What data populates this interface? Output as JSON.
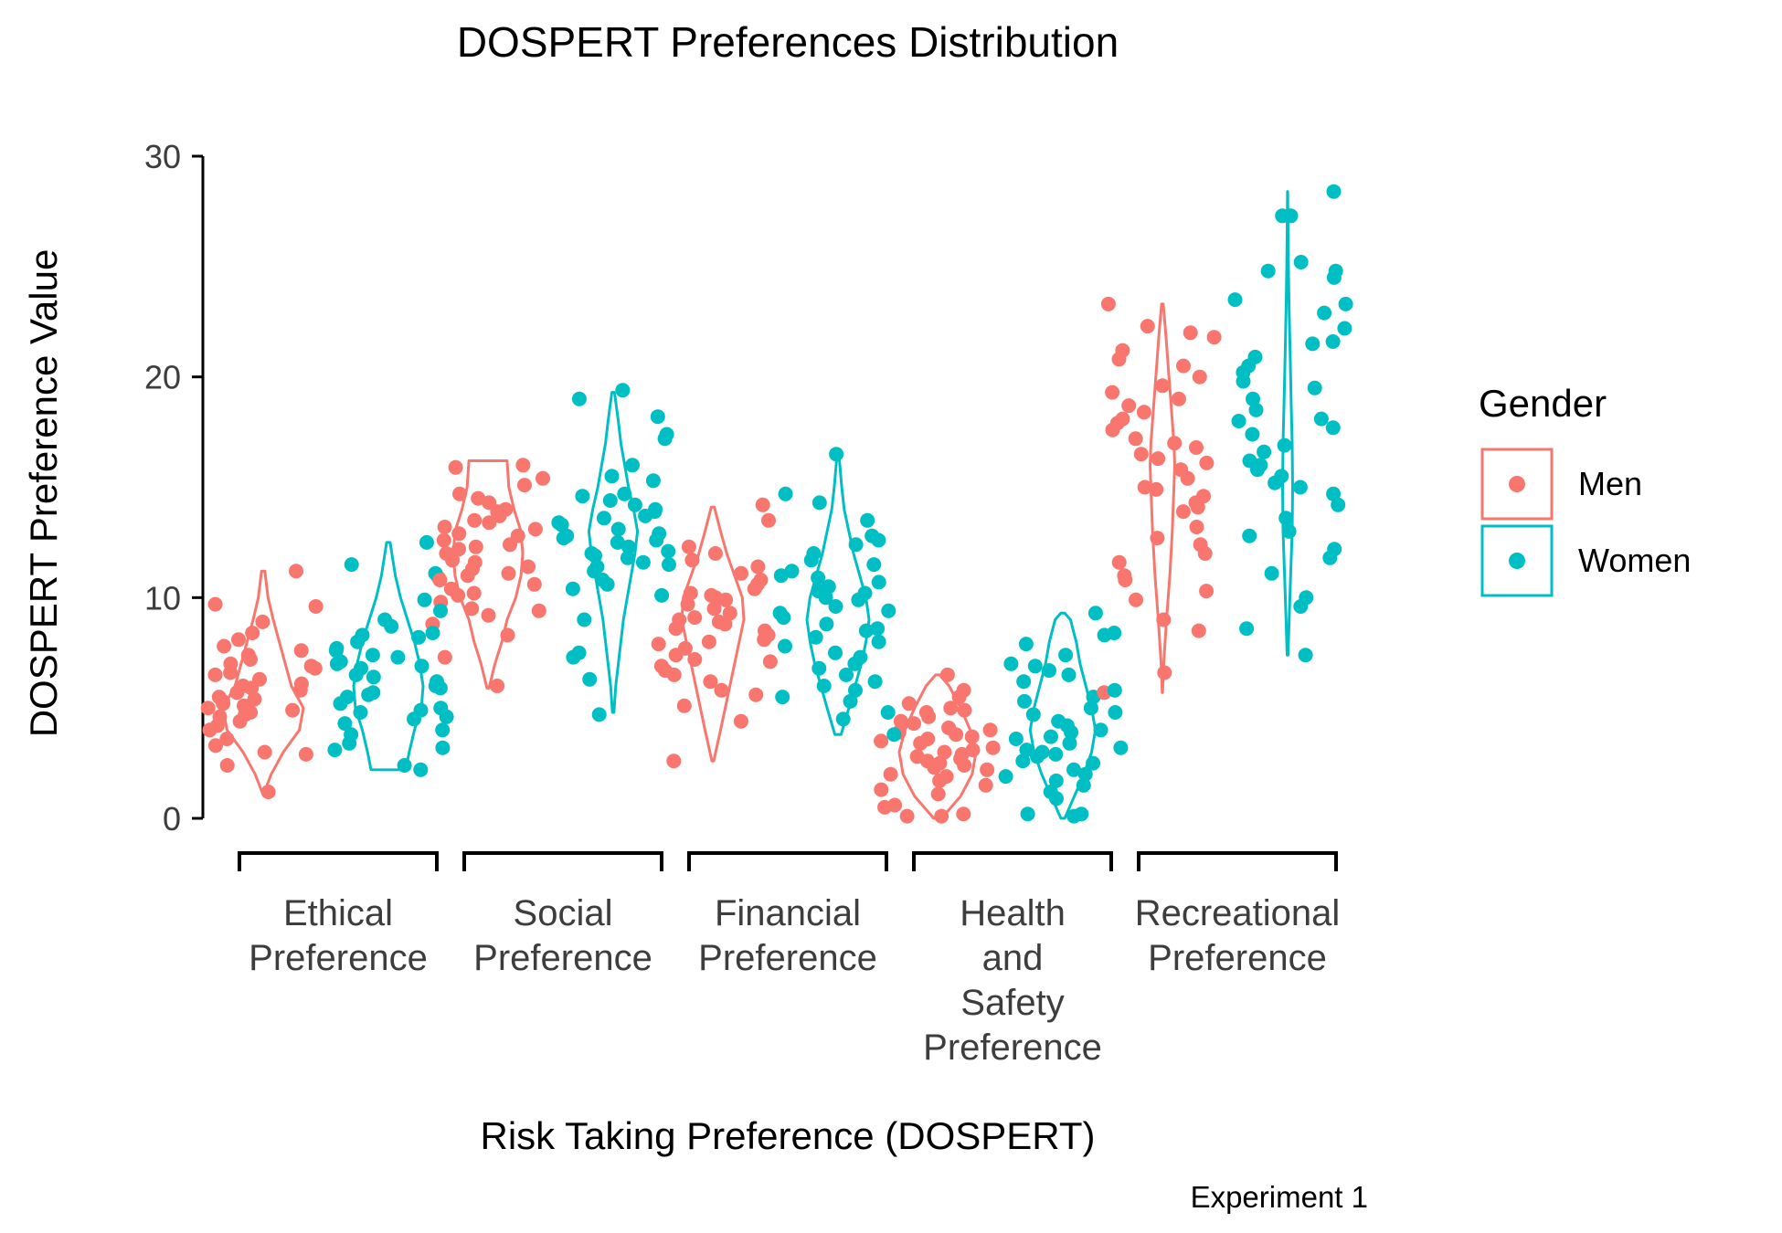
{
  "chart_data": {
    "type": "violin-jitter",
    "title": "DOSPERT Preferences Distribution",
    "xlabel": "Risk Taking Preference (DOSPERT)",
    "ylabel": "DOSPERT Preference Value",
    "caption": "Experiment 1",
    "ylim": [
      0,
      30
    ],
    "yticks": [
      0,
      10,
      20,
      30
    ],
    "grid": false,
    "legend": {
      "title": "Gender",
      "position": "right",
      "entries": [
        {
          "name": "Men",
          "color": "#f8766d"
        },
        {
          "name": "Women",
          "color": "#00bfc4"
        }
      ]
    },
    "categories": [
      {
        "lines": [
          "Ethical",
          "Preference"
        ]
      },
      {
        "lines": [
          "Social",
          "Preference"
        ]
      },
      {
        "lines": [
          "Financial",
          "Preference"
        ]
      },
      {
        "lines": [
          "Health",
          "and",
          "Safety",
          "Preference"
        ]
      },
      {
        "lines": [
          "Recreational",
          "Preference"
        ]
      }
    ],
    "series": [
      {
        "name": "Men",
        "color": "#f8766d",
        "violins": [
          {
            "min": 1.2,
            "max": 11.2,
            "profile": [
              [
                1.2,
                0.03
              ],
              [
                2,
                0.2
              ],
              [
                3,
                0.5
              ],
              [
                4,
                0.9
              ],
              [
                5,
                1.0
              ],
              [
                6,
                0.7
              ],
              [
                7,
                0.55
              ],
              [
                8,
                0.4
              ],
              [
                9,
                0.25
              ],
              [
                10,
                0.12
              ],
              [
                11.2,
                0.04
              ]
            ]
          },
          {
            "min": 5.9,
            "max": 16.2,
            "profile": [
              [
                5.9,
                0.03
              ],
              [
                7,
                0.2
              ],
              [
                8,
                0.4
              ],
              [
                9,
                0.55
              ],
              [
                10,
                0.8
              ],
              [
                11,
                0.95
              ],
              [
                12,
                1.0
              ],
              [
                13,
                0.95
              ],
              [
                14,
                0.75
              ],
              [
                15,
                0.6
              ],
              [
                16.2,
                0.55
              ]
            ]
          },
          {
            "min": 2.6,
            "max": 14.1,
            "profile": [
              [
                2.6,
                0.03
              ],
              [
                4,
                0.25
              ],
              [
                5,
                0.4
              ],
              [
                6,
                0.55
              ],
              [
                7,
                0.7
              ],
              [
                8,
                0.85
              ],
              [
                9,
                1.0
              ],
              [
                10,
                0.95
              ],
              [
                11,
                0.7
              ],
              [
                12,
                0.45
              ],
              [
                13,
                0.25
              ],
              [
                14.1,
                0.05
              ]
            ]
          },
          {
            "min": 0.0,
            "max": 6.5,
            "profile": [
              [
                0,
                0.1
              ],
              [
                1,
                0.6
              ],
              [
                2,
                0.9
              ],
              [
                3,
                1.0
              ],
              [
                4,
                0.85
              ],
              [
                5,
                0.6
              ],
              [
                6,
                0.3
              ],
              [
                6.5,
                0.05
              ]
            ]
          },
          {
            "min": 5.7,
            "max": 23.3,
            "profile": [
              [
                5.7,
                0.01
              ],
              [
                7,
                0.08
              ],
              [
                9,
                0.25
              ],
              [
                11,
                0.45
              ],
              [
                13,
                0.6
              ],
              [
                15,
                0.7
              ],
              [
                16,
                0.75
              ],
              [
                17,
                0.7
              ],
              [
                18,
                0.6
              ],
              [
                19,
                0.5
              ],
              [
                20,
                0.4
              ],
              [
                21,
                0.3
              ],
              [
                22,
                0.2
              ],
              [
                23.3,
                0.05
              ]
            ]
          }
        ],
        "points": [
          [
            9.7,
            6.5,
            5.3,
            4.8,
            7.6,
            2.9,
            5.0,
            6.1,
            4.6,
            2.4,
            8.9,
            7.4,
            5.5,
            4.2,
            6.8,
            3.6,
            9.6,
            5.7,
            6.9,
            4.9,
            3.0,
            7.2,
            5.1,
            6.3,
            4.4,
            11.2,
            5.8,
            7.0,
            4.0,
            6.6,
            3.3,
            8.1,
            5.4,
            1.2,
            6.0,
            4.7,
            7.8,
            5.2,
            8.4,
            5.9
          ],
          [
            13.2,
            11.0,
            12.8,
            9.4,
            14.5,
            10.6,
            12.0,
            8.3,
            13.9,
            11.7,
            10.2,
            15.1,
            12.4,
            9.8,
            14.0,
            6.0,
            11.3,
            13.5,
            10.9,
            12.6,
            15.9,
            9.2,
            11.9,
            13.1,
            10.4,
            12.2,
            14.7,
            7.3,
            11.6,
            16.0,
            10.1,
            13.7,
            12.9,
            8.8,
            11.1,
            14.3,
            10.8,
            15.4,
            12.3,
            9.5,
            13.4,
            11.4
          ],
          [
            10.2,
            8.6,
            12.0,
            7.1,
            9.5,
            4.4,
            11.1,
            8.0,
            13.5,
            6.5,
            9.9,
            7.7,
            10.6,
            5.8,
            8.9,
            12.3,
            6.9,
            9.1,
            2.6,
            10.0,
            7.4,
            11.7,
            8.3,
            5.6,
            9.7,
            6.2,
            10.8,
            7.9,
            8.5,
            11.4,
            6.7,
            9.3,
            10.4,
            8.8,
            5.1,
            9.0,
            7.2,
            10.1,
            8.1,
            14.2
          ],
          [
            2.5,
            3.8,
            1.7,
            4.4,
            3.0,
            5.2,
            2.2,
            0.2,
            3.5,
            4.9,
            1.3,
            2.8,
            5.8,
            3.2,
            2.0,
            4.1,
            1.5,
            3.7,
            6.5,
            2.6,
            4.6,
            0.6,
            3.9,
            2.3,
            5.0,
            1.9,
            3.4,
            4.3,
            0.1,
            2.9,
            3.6,
            1.1,
            4.8,
            2.4,
            5.5,
            0.5,
            3.1,
            4.0,
            0.1,
            2.7
          ],
          [
            16.5,
            21.8,
            12.0,
            19.6,
            14.1,
            17.2,
            9.0,
            22.3,
            15.0,
            18.7,
            13.2,
            20.0,
            11.0,
            16.8,
            23.3,
            14.6,
            19.0,
            8.5,
            17.6,
            12.7,
            21.2,
            15.4,
            18.1,
            10.3,
            16.1,
            13.9,
            20.5,
            9.9,
            17.9,
            14.9,
            19.3,
            11.6,
            22.0,
            15.8,
            18.4,
            6.6,
            16.3,
            12.4,
            20.8,
            14.3,
            17.0,
            5.7,
            10.8
          ]
        ]
      },
      {
        "name": "Women",
        "color": "#00bfc4",
        "violins": [
          {
            "min": 2.2,
            "max": 12.5,
            "profile": [
              [
                2.2,
                0.5
              ],
              [
                3,
                0.6
              ],
              [
                4,
                0.75
              ],
              [
                5,
                0.95
              ],
              [
                6,
                1.0
              ],
              [
                7,
                0.9
              ],
              [
                8,
                0.75
              ],
              [
                9,
                0.55
              ],
              [
                10,
                0.35
              ],
              [
                11,
                0.2
              ],
              [
                12.5,
                0.05
              ]
            ]
          },
          {
            "min": 4.8,
            "max": 19.3,
            "profile": [
              [
                4.8,
                0.03
              ],
              [
                6,
                0.1
              ],
              [
                7,
                0.2
              ],
              [
                8,
                0.3
              ],
              [
                9,
                0.4
              ],
              [
                10,
                0.55
              ],
              [
                11,
                0.7
              ],
              [
                12,
                0.85
              ],
              [
                13,
                0.95
              ],
              [
                14,
                0.8
              ],
              [
                15,
                0.6
              ],
              [
                16,
                0.45
              ],
              [
                17,
                0.3
              ],
              [
                18,
                0.2
              ],
              [
                19.3,
                0.05
              ]
            ]
          },
          {
            "min": 3.8,
            "max": 16.5,
            "profile": [
              [
                3.8,
                0.1
              ],
              [
                5,
                0.35
              ],
              [
                6,
                0.55
              ],
              [
                7,
                0.75
              ],
              [
                8,
                0.9
              ],
              [
                9,
                1.0
              ],
              [
                10,
                0.9
              ],
              [
                11,
                0.7
              ],
              [
                12,
                0.5
              ],
              [
                13,
                0.35
              ],
              [
                14,
                0.2
              ],
              [
                15,
                0.12
              ],
              [
                16.5,
                0.03
              ]
            ]
          },
          {
            "min": 0.0,
            "max": 9.3,
            "profile": [
              [
                0,
                0.05
              ],
              [
                1,
                0.3
              ],
              [
                2,
                0.55
              ],
              [
                3,
                0.75
              ],
              [
                4,
                0.85
              ],
              [
                5,
                0.75
              ],
              [
                6,
                0.6
              ],
              [
                7,
                0.45
              ],
              [
                8,
                0.35
              ],
              [
                9,
                0.2
              ],
              [
                9.3,
                0.05
              ]
            ]
          },
          {
            "min": 7.4,
            "max": 28.4,
            "profile": [
              [
                7.4,
                0.05
              ],
              [
                9,
                0.15
              ],
              [
                11,
                0.3
              ],
              [
                13,
                0.45
              ],
              [
                15,
                0.5
              ],
              [
                17,
                0.45
              ],
              [
                19,
                0.35
              ],
              [
                21,
                0.25
              ],
              [
                23,
                0.15
              ],
              [
                25,
                0.08
              ],
              [
                27,
                0.04
              ],
              [
                28.4,
                0.01
              ]
            ]
          }
        ],
        "points": [
          [
            6.0,
            8.4,
            4.6,
            11.5,
            7.3,
            5.2,
            9.0,
            3.1,
            6.8,
            4.9,
            7.6,
            2.2,
            8.2,
            5.7,
            9.9,
            4.0,
            6.5,
            3.4,
            7.1,
            5.0,
            8.7,
            2.4,
            6.2,
            4.3,
            7.7,
            5.5,
            9.4,
            3.8,
            6.9,
            4.8,
            7.4,
            3.2,
            8.0,
            5.6,
            6.4,
            12.5,
            7.0,
            4.5,
            8.3,
            5.9,
            11.1
          ],
          [
            12.7,
            14.4,
            10.4,
            12.0,
            13.6,
            7.3,
            11.2,
            14.0,
            4.7,
            12.3,
            10.8,
            13.1,
            11.6,
            14.2,
            9.0,
            12.8,
            19.4,
            13.4,
            10.6,
            15.3,
            11.9,
            13.9,
            12.5,
            10.1,
            14.7,
            11.5,
            16.0,
            12.1,
            13.3,
            7.5,
            14.6,
            11.8,
            17.2,
            12.9,
            18.2,
            13.7,
            6.3,
            15.5,
            11.4,
            19.0,
            12.6,
            17.4
          ],
          [
            10.3,
            8.5,
            12.4,
            6.2,
            9.6,
            13.5,
            7.5,
            10.9,
            5.8,
            11.7,
            8.8,
            4.8,
            9.9,
            7.0,
            11.2,
            6.5,
            10.5,
            8.2,
            14.3,
            9.1,
            5.3,
            10.7,
            7.8,
            12.0,
            6.8,
            9.4,
            16.5,
            8.0,
            11.5,
            4.5,
            10.0,
            7.3,
            12.6,
            6.0,
            9.3,
            14.7,
            8.6,
            11.0,
            5.5,
            10.2,
            3.8,
            12.8
          ],
          [
            3.6,
            1.9,
            4.7,
            2.6,
            5.3,
            0.9,
            3.2,
            6.9,
            2.2,
            4.0,
            1.5,
            5.8,
            3.0,
            7.4,
            2.8,
            4.4,
            0.1,
            3.9,
            6.2,
            2.0,
            5.0,
            8.3,
            3.4,
            1.2,
            4.8,
            7.0,
            2.5,
            9.3,
            3.7,
            6.5,
            1.7,
            5.5,
            0.2,
            4.2,
            8.4,
            2.9,
            6.7,
            3.1,
            7.9,
            0.2
          ],
          [
            16.0,
            24.5,
            13.0,
            21.5,
            18.1,
            27.3,
            15.2,
            19.5,
            11.1,
            23.5,
            16.6,
            25.2,
            14.2,
            20.9,
            8.6,
            17.4,
            22.2,
            12.8,
            27.3,
            15.8,
            19.8,
            9.6,
            18.5,
            24.8,
            13.6,
            16.9,
            28.4,
            11.8,
            20.2,
            15.0,
            22.9,
            7.4,
            17.7,
            21.6,
            14.7,
            24.8,
            12.2,
            19.0,
            16.2,
            10.0,
            18.0,
            23.3,
            15.5,
            20.5
          ]
        ]
      }
    ]
  }
}
